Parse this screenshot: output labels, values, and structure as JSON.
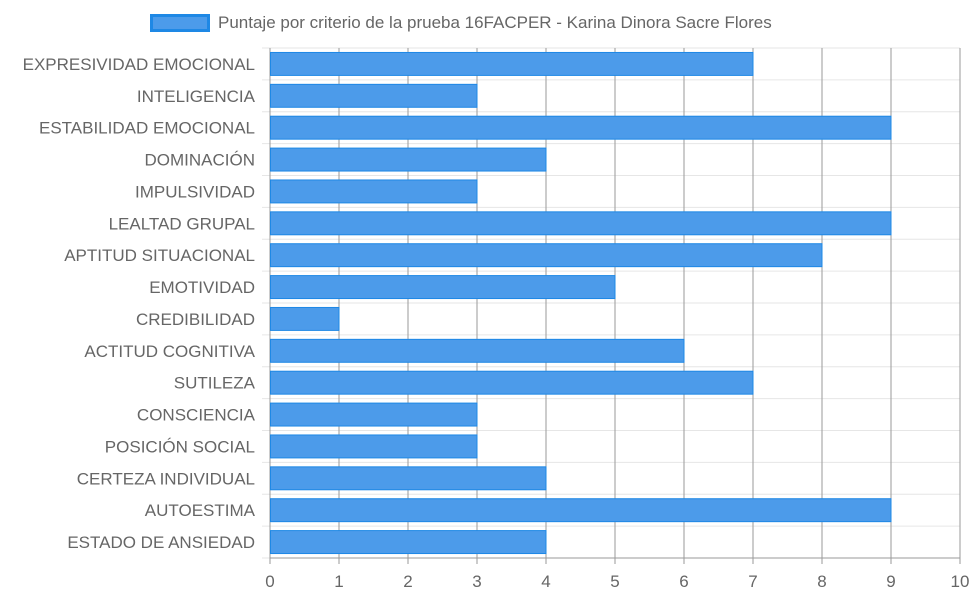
{
  "chart_data": {
    "type": "bar",
    "orientation": "horizontal",
    "categories": [
      "EXPRESIVIDAD EMOCIONAL",
      "INTELIGENCIA",
      "ESTABILIDAD EMOCIONAL",
      "DOMINACIÓN",
      "IMPULSIVIDAD",
      "LEALTAD GRUPAL",
      "APTITUD SITUACIONAL",
      "EMOTIVIDAD",
      "CREDIBILIDAD",
      "ACTITUD COGNITIVA",
      "SUTILEZA",
      "CONSCIENCIA",
      "POSICIÓN SOCIAL",
      "CERTEZA INDIVIDUAL",
      "AUTOESTIMA",
      "ESTADO DE ANSIEDAD"
    ],
    "series": [
      {
        "name": "Puntaje por criterio de la prueba 16FACPER - Karina Dinora Sacre Flores",
        "values": [
          7,
          3,
          9,
          4,
          3,
          9,
          8,
          5,
          1,
          6,
          7,
          3,
          3,
          4,
          9,
          4
        ]
      }
    ],
    "xlim": [
      0,
      10
    ],
    "x_ticks": [
      "0",
      "1",
      "2",
      "3",
      "4",
      "5",
      "6",
      "7",
      "8",
      "9",
      "10"
    ],
    "grid": true,
    "legend_position": "top",
    "colors": {
      "bar_fill": "#4c9bea",
      "bar_border": "#1e88e5",
      "grid": "#e6e6e6",
      "axis": "#999999",
      "text": "#666666"
    }
  }
}
